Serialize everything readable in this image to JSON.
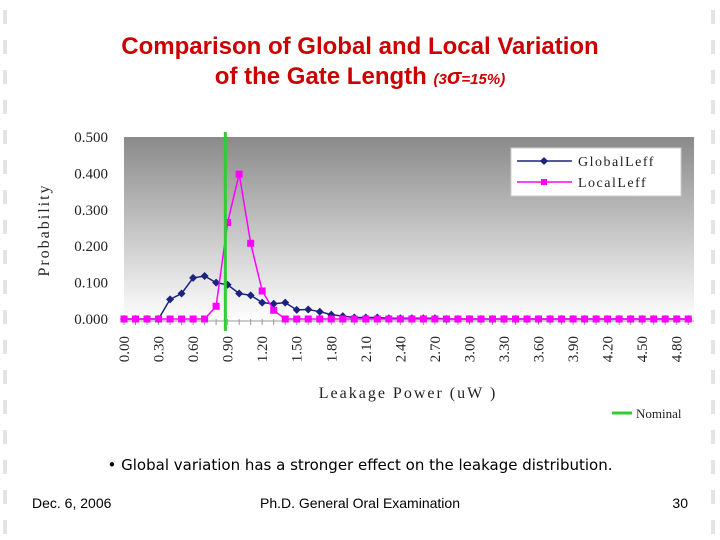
{
  "slide": {
    "title_line1": "Comparison of Global and Local Variation",
    "title_line2": "of the Gate Length",
    "title_paren_open": "(3",
    "title_sigma": "σ",
    "title_paren_rest": "=15%)",
    "bullet": "• Global variation has a stronger effect on the leakage distribution.",
    "footer_left": "Dec. 6, 2006",
    "footer_center": "Ph.D. General Oral Examination",
    "footer_right": "30"
  },
  "chart_data": {
    "type": "line",
    "xlabel": "Leakage Power (uW )",
    "ylabel": "Probability",
    "ylim": [
      0,
      0.5
    ],
    "xlim": [
      0,
      4.95
    ],
    "y_ticks": [
      "0.000",
      "0.100",
      "0.200",
      "0.300",
      "0.400",
      "0.500"
    ],
    "x_ticks": [
      "0.00",
      "0.30",
      "0.60",
      "0.90",
      "1.20",
      "1.50",
      "1.80",
      "2.10",
      "2.40",
      "2.70",
      "3.00",
      "3.30",
      "3.60",
      "3.90",
      "4.20",
      "4.50",
      "4.80"
    ],
    "legend_position": "top-right",
    "grid": false,
    "series": [
      {
        "name": "GlobalLeff",
        "color": "#1a237e",
        "marker": "diamond",
        "points": [
          [
            0.0,
            0.0
          ],
          [
            0.1,
            0.0
          ],
          [
            0.2,
            0.0
          ],
          [
            0.3,
            0.0
          ],
          [
            0.4,
            0.054
          ],
          [
            0.5,
            0.07
          ],
          [
            0.6,
            0.113
          ],
          [
            0.7,
            0.118
          ],
          [
            0.8,
            0.1
          ],
          [
            0.9,
            0.094
          ],
          [
            1.0,
            0.07
          ],
          [
            1.1,
            0.065
          ],
          [
            1.2,
            0.045
          ],
          [
            1.3,
            0.042
          ],
          [
            1.4,
            0.045
          ],
          [
            1.5,
            0.025
          ],
          [
            1.6,
            0.026
          ],
          [
            1.7,
            0.02
          ],
          [
            1.8,
            0.012
          ],
          [
            1.9,
            0.008
          ],
          [
            2.0,
            0.004
          ],
          [
            2.1,
            0.004
          ],
          [
            2.2,
            0.004
          ],
          [
            2.3,
            0.002
          ],
          [
            2.4,
            0.002
          ],
          [
            2.5,
            0.002
          ],
          [
            2.6,
            0.002
          ],
          [
            2.7,
            0.002
          ],
          [
            2.8,
            0.0
          ],
          [
            2.9,
            0.0
          ],
          [
            3.0,
            0.0
          ],
          [
            3.1,
            0.0
          ],
          [
            3.2,
            0.0
          ],
          [
            3.3,
            0.0
          ],
          [
            3.4,
            0.0
          ],
          [
            3.5,
            0.0
          ],
          [
            3.6,
            0.0
          ],
          [
            3.7,
            0.0
          ],
          [
            3.8,
            0.0
          ],
          [
            3.9,
            0.0
          ],
          [
            4.0,
            0.0
          ],
          [
            4.1,
            0.0
          ],
          [
            4.2,
            0.0
          ],
          [
            4.3,
            0.0
          ],
          [
            4.4,
            0.0
          ],
          [
            4.5,
            0.0
          ],
          [
            4.6,
            0.0
          ],
          [
            4.7,
            0.0
          ],
          [
            4.8,
            0.0
          ],
          [
            4.9,
            0.0
          ]
        ]
      },
      {
        "name": "LocalLeff",
        "color": "#ff00ff",
        "marker": "square",
        "points": [
          [
            0.0,
            0.0
          ],
          [
            0.1,
            0.0
          ],
          [
            0.2,
            0.0
          ],
          [
            0.3,
            0.0
          ],
          [
            0.4,
            0.0
          ],
          [
            0.5,
            0.0
          ],
          [
            0.6,
            0.0
          ],
          [
            0.7,
            0.0
          ],
          [
            0.8,
            0.035
          ],
          [
            0.9,
            0.265
          ],
          [
            1.0,
            0.398
          ],
          [
            1.1,
            0.208
          ],
          [
            1.2,
            0.077
          ],
          [
            1.3,
            0.024
          ],
          [
            1.4,
            0.0
          ],
          [
            1.5,
            0.0
          ],
          [
            1.6,
            0.0
          ],
          [
            1.7,
            0.0
          ],
          [
            1.8,
            0.0
          ],
          [
            1.9,
            0.0
          ],
          [
            2.0,
            0.0
          ],
          [
            2.1,
            0.0
          ],
          [
            2.2,
            0.0
          ],
          [
            2.3,
            0.0
          ],
          [
            2.4,
            0.0
          ],
          [
            2.5,
            0.0
          ],
          [
            2.6,
            0.0
          ],
          [
            2.7,
            0.0
          ],
          [
            2.8,
            0.0
          ],
          [
            2.9,
            0.0
          ],
          [
            3.0,
            0.0
          ],
          [
            3.1,
            0.0
          ],
          [
            3.2,
            0.0
          ],
          [
            3.3,
            0.0
          ],
          [
            3.4,
            0.0
          ],
          [
            3.5,
            0.0
          ],
          [
            3.6,
            0.0
          ],
          [
            3.7,
            0.0
          ],
          [
            3.8,
            0.0
          ],
          [
            3.9,
            0.0
          ],
          [
            4.0,
            0.0
          ],
          [
            4.1,
            0.0
          ],
          [
            4.2,
            0.0
          ],
          [
            4.3,
            0.0
          ],
          [
            4.4,
            0.0
          ],
          [
            4.5,
            0.0
          ],
          [
            4.6,
            0.0
          ],
          [
            4.7,
            0.0
          ],
          [
            4.8,
            0.0
          ],
          [
            4.9,
            0.0
          ]
        ]
      }
    ],
    "reference_line": {
      "name": "Nominal",
      "x": 0.88,
      "color": "#33cc33"
    }
  }
}
